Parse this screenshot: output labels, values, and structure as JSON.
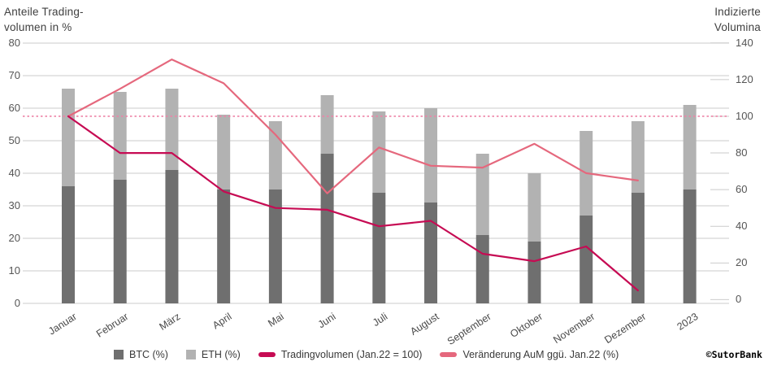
{
  "titles": {
    "left_line1": "Anteile Trading-",
    "left_line2": "volumen in %",
    "right_line1": "Indizierte",
    "right_line2": "Volumina"
  },
  "watermark": "©SutorBank",
  "legend": [
    {
      "label": "BTC (%)",
      "swatch": "square",
      "color": "#6f6f6f"
    },
    {
      "label": "ETH (%)",
      "swatch": "square",
      "color": "#b2b2b2"
    },
    {
      "label": "Tradingvolumen (Jan.22 = 100)",
      "swatch": "line",
      "color": "#c60b53"
    },
    {
      "label": "Veränderung AuM ggü. Jan.22 (%)",
      "swatch": "line",
      "color": "#e5687d"
    }
  ],
  "chart_data": {
    "type": "bar",
    "subtype": "stacked bars with two lines (combo chart)",
    "categories": [
      "Januar",
      "Februar",
      "März",
      "April",
      "Mai",
      "Juni",
      "Juli",
      "August",
      "September",
      "Oktober",
      "November",
      "Dezember",
      "2023"
    ],
    "left_axis": {
      "label": "Anteile Tradingvolumen in %",
      "range": [
        0,
        80
      ],
      "tick_labels": [
        "80",
        "70",
        "60",
        "50",
        "40",
        "30",
        "20",
        "10",
        "0"
      ]
    },
    "right_axis": {
      "label": "Indizierte Volumina",
      "range": [
        0,
        140
      ],
      "tick_labels": [
        "140",
        "120",
        "100",
        "80",
        "60",
        "40",
        "20",
        "0"
      ]
    },
    "series": [
      {
        "name": "BTC (%)",
        "type": "stacked-bar",
        "axis": "left",
        "color": "#6f6f6f",
        "values": [
          36,
          38,
          41,
          35,
          35,
          46,
          34,
          31,
          21,
          19,
          27,
          34,
          35
        ]
      },
      {
        "name": "ETH (%)",
        "type": "stacked-bar",
        "axis": "left",
        "color": "#b2b2b2",
        "values": [
          30,
          27,
          25,
          23,
          21,
          18,
          25,
          29,
          25,
          21,
          26,
          22,
          26
        ]
      },
      {
        "name": "Tradingvolumen (Jan.22 = 100)",
        "type": "line",
        "axis": "right",
        "color": "#c60b53",
        "values": [
          100,
          80,
          80,
          59,
          50,
          49,
          40,
          43,
          25,
          21,
          29,
          5,
          null
        ]
      },
      {
        "name": "Veränderung AuM ggü. Jan.22 (%)",
        "type": "line",
        "axis": "right",
        "color": "#e5687d",
        "values": [
          100,
          115,
          131,
          118,
          90,
          58,
          83,
          73,
          72,
          85,
          69,
          65,
          null
        ]
      }
    ],
    "reference_line": {
      "axis": "right",
      "value": 100,
      "style": "dotted",
      "color": "#ee82a6"
    },
    "grid": true,
    "legend_position": "bottom"
  }
}
